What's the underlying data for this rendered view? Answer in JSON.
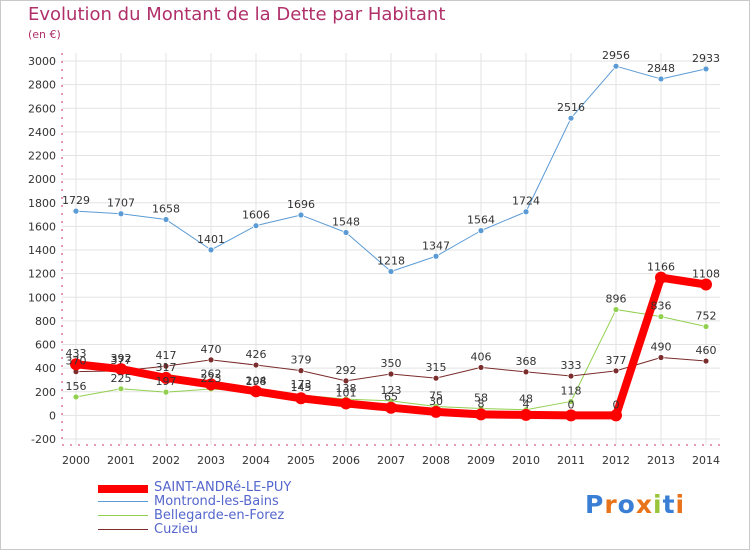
{
  "header": {
    "title": "Evolution du Montant de la Dette par Habitant",
    "unit": "(en €)"
  },
  "logo": {
    "text": "Proxiti"
  },
  "chart_data": {
    "type": "line",
    "title": "Evolution du Montant de la Dette par Habitant",
    "subtitle": "(en €)",
    "xlabel": "",
    "ylabel": "",
    "x": [
      "2000",
      "2001",
      "2002",
      "2003",
      "2004",
      "2005",
      "2006",
      "2007",
      "2008",
      "2009",
      "2010",
      "2011",
      "2012",
      "2013",
      "2014"
    ],
    "ylim": [
      -200,
      3000
    ],
    "yticks": [
      -200,
      0,
      200,
      400,
      600,
      800,
      1000,
      1200,
      1400,
      1600,
      1800,
      2000,
      2200,
      2400,
      2600,
      2800,
      3000
    ],
    "grid": true,
    "legend": "bottom-left",
    "series": [
      {
        "name": "SAINT-ANDRé-LE-PUY",
        "color": "#ff0000",
        "width": 8,
        "values": [
          433,
          392,
          317,
          262,
          204,
          145,
          101,
          65,
          30,
          8,
          4,
          0,
          0,
          1166,
          1108
        ]
      },
      {
        "name": "Montrond-les-Bains",
        "color": "#5b9bd5",
        "width": 1,
        "values": [
          1729,
          1707,
          1658,
          1401,
          1606,
          1696,
          1548,
          1218,
          1347,
          1564,
          1724,
          2516,
          2956,
          2848,
          2933
        ]
      },
      {
        "name": "Bellegarde-en-Forez",
        "color": "#92d050",
        "width": 1,
        "values": [
          156,
          225,
          197,
          223,
          198,
          173,
          138,
          123,
          75,
          58,
          48,
          118,
          896,
          836,
          752
        ]
      },
      {
        "name": "Cuzieu",
        "color": "#7b2c2c",
        "width": 1,
        "values": [
          370,
          377,
          417,
          470,
          426,
          379,
          292,
          350,
          315,
          406,
          368,
          333,
          377,
          490,
          460
        ]
      }
    ]
  }
}
